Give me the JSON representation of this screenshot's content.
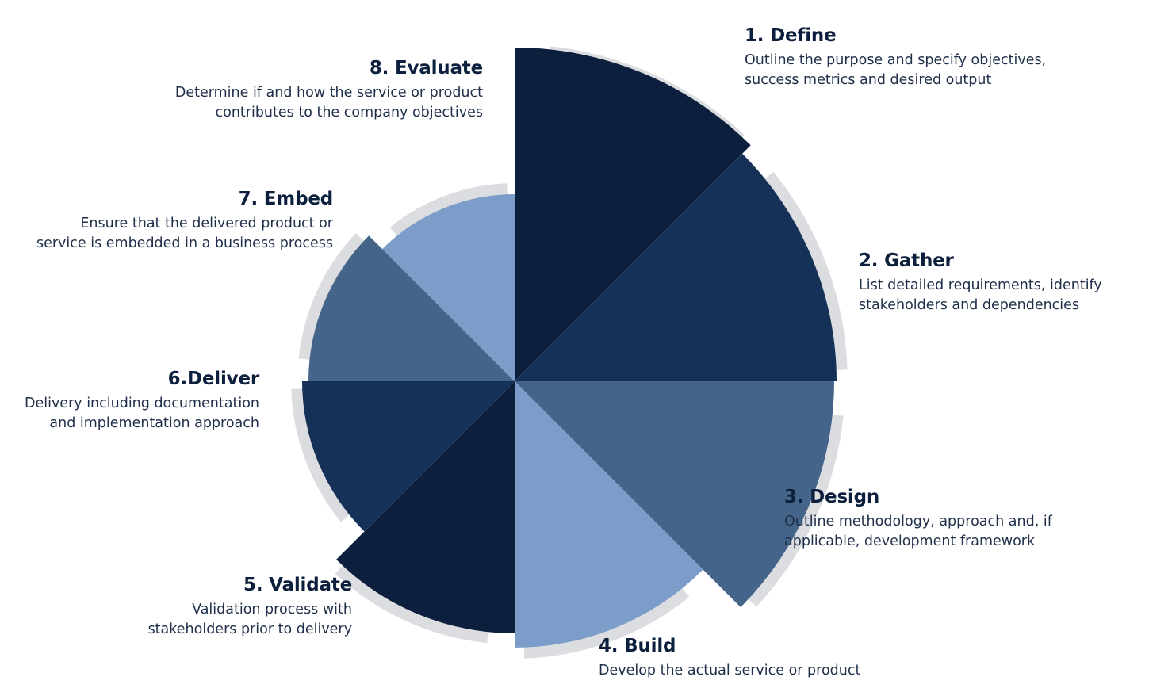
{
  "colors": {
    "darkest": "#0c1f3d",
    "dark": "#163158",
    "mid": "#456489",
    "light": "#7c9dc9",
    "shadow": "#dcdde0"
  },
  "steps": [
    {
      "title": "1. Define",
      "lines": [
        "Outline the purpose and specify objectives,",
        "success metrics and desired output"
      ],
      "color": "#0c1f3d"
    },
    {
      "title": "2. Gather",
      "lines": [
        "List detailed requirements, identify",
        "stakeholders and dependencies"
      ],
      "color": "#163158"
    },
    {
      "title": "3. Design",
      "lines": [
        "Outline methodology, approach and, if",
        "applicable, development framework"
      ],
      "color": "#456489"
    },
    {
      "title": "4. Build",
      "lines": [
        "Develop the actual service or product"
      ],
      "color": "#7c9dc9"
    },
    {
      "title": "5. Validate",
      "lines": [
        "Validation process with",
        "stakeholders prior to delivery"
      ],
      "color": "#0c1f3d"
    },
    {
      "title": "6.Deliver",
      "lines": [
        "Delivery including documentation",
        "and implementation approach"
      ],
      "color": "#163158"
    },
    {
      "title": "7. Embed",
      "lines": [
        "Ensure that the delivered product or",
        "service is embedded in a business process"
      ],
      "color": "#456489"
    },
    {
      "title": "8. Evaluate",
      "lines": [
        "Determine if and how the service or product",
        "contributes to the company objectives"
      ],
      "color": "#7c9dc9"
    }
  ]
}
